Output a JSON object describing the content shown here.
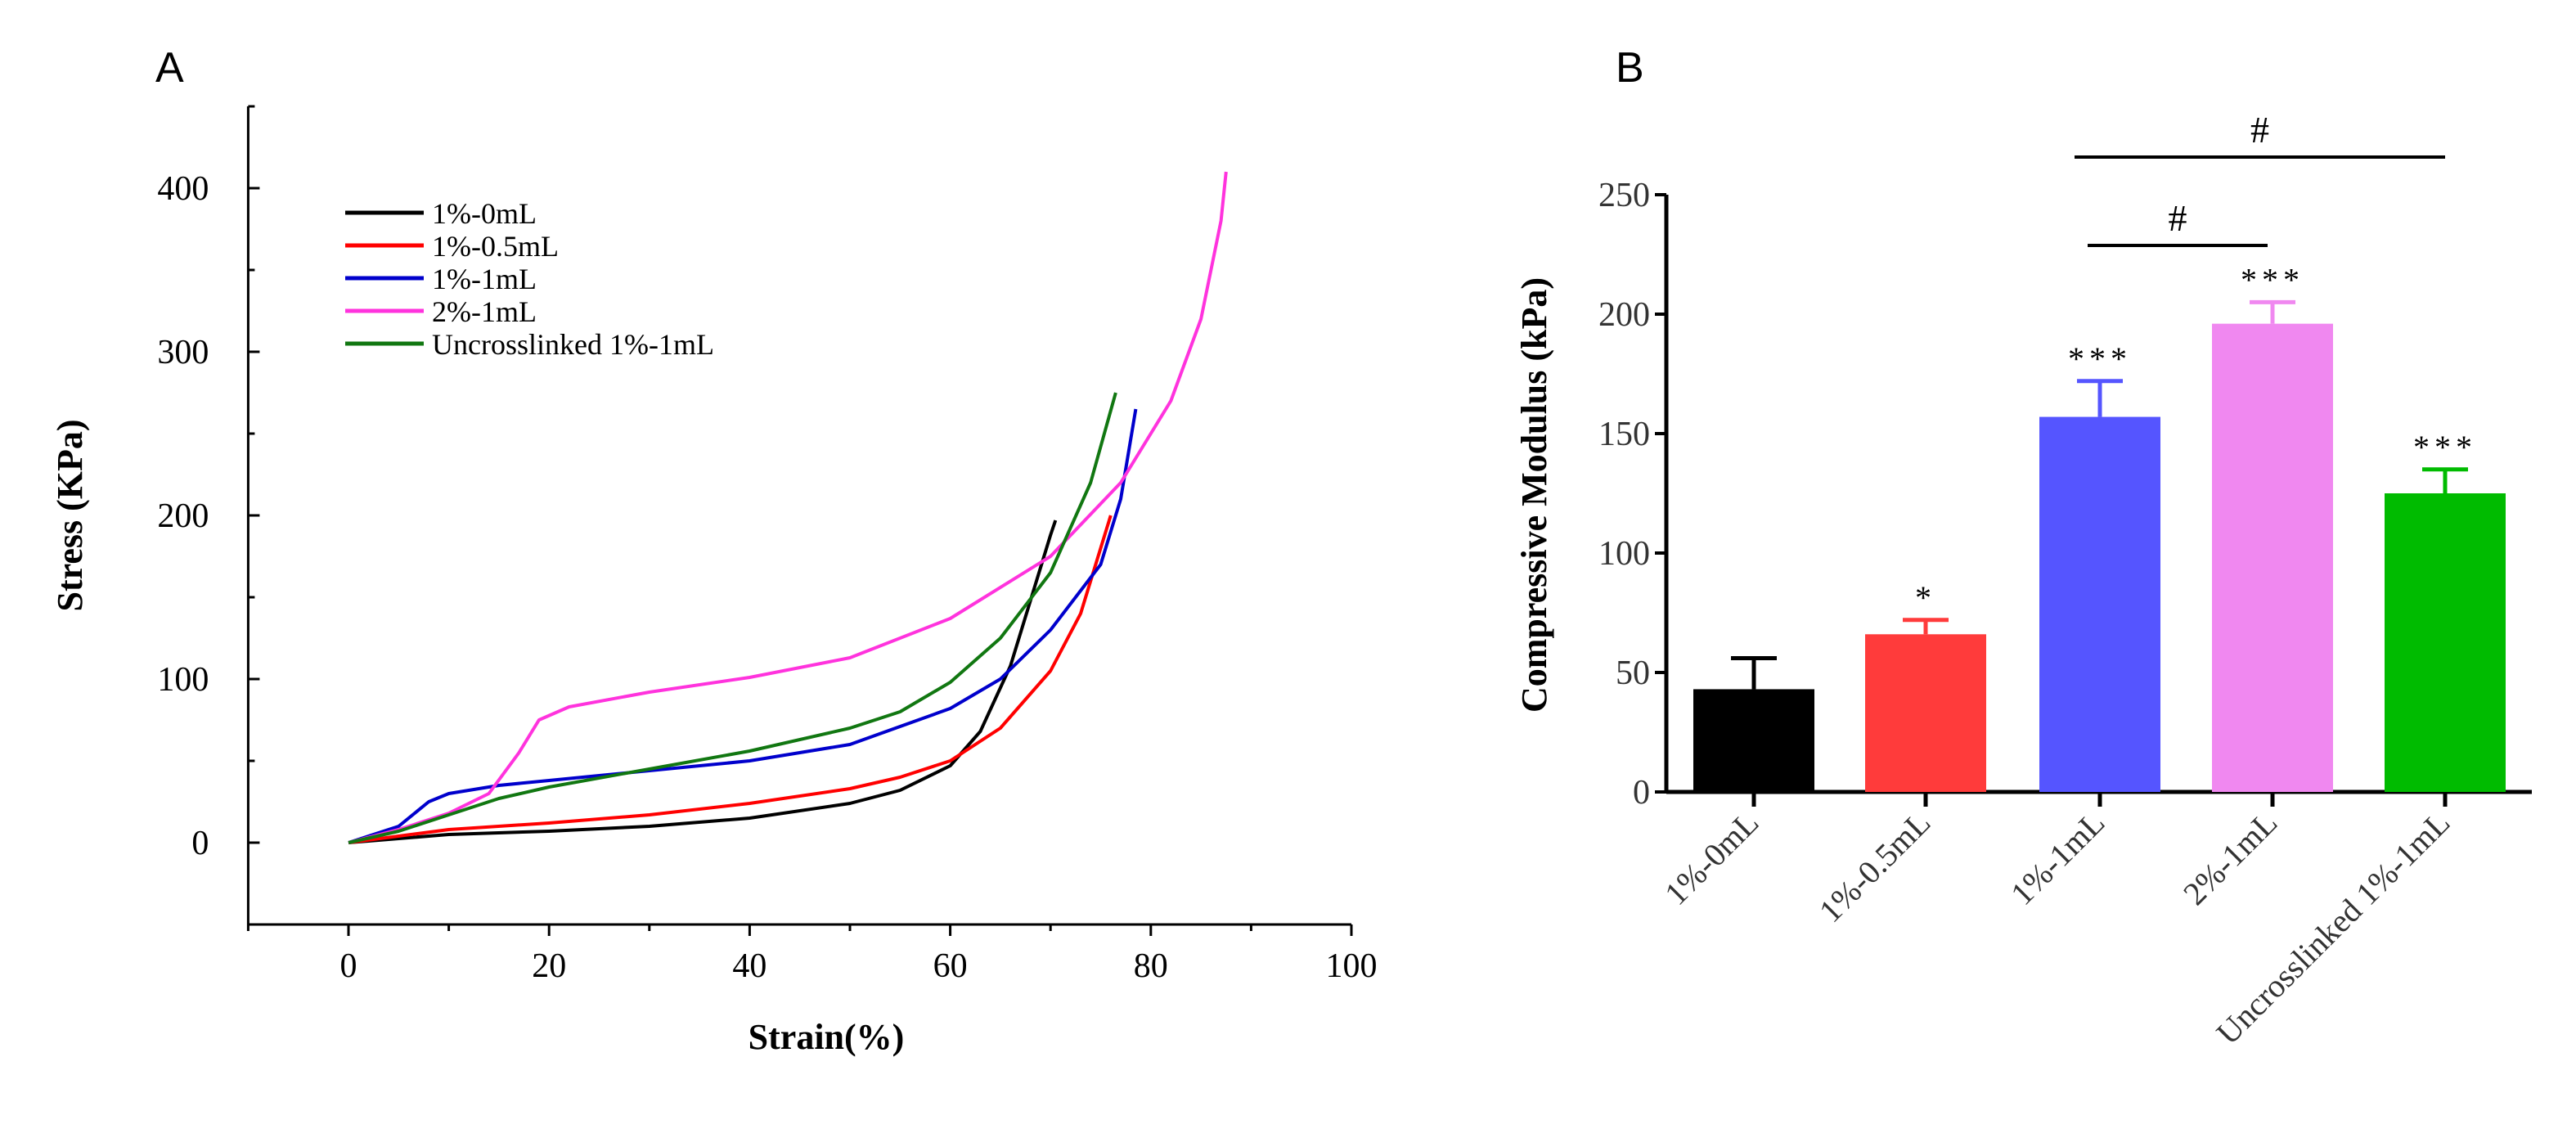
{
  "chart_data": [
    {
      "panel": "A",
      "type": "line",
      "xlabel": "Strain(%)",
      "ylabel": "Stress (KPa)",
      "xlim": [
        -10,
        100
      ],
      "ylim": [
        -50,
        450
      ],
      "xticks": [
        0,
        20,
        40,
        60,
        80,
        100
      ],
      "yticks": [
        0,
        100,
        200,
        300,
        400
      ],
      "legend_position": "top-left",
      "series": [
        {
          "name": "1%-0mL",
          "color": "#000000",
          "points": [
            [
              0,
              0
            ],
            [
              10,
              5
            ],
            [
              20,
              7
            ],
            [
              30,
              10
            ],
            [
              40,
              15
            ],
            [
              50,
              24
            ],
            [
              55,
              32
            ],
            [
              60,
              47
            ],
            [
              63,
              68
            ],
            [
              66,
              108
            ],
            [
              68,
              148
            ],
            [
              70,
              188
            ],
            [
              70.5,
              197
            ]
          ]
        },
        {
          "name": "1%-0.5mL",
          "color": "#ff0000",
          "points": [
            [
              0,
              0
            ],
            [
              10,
              8
            ],
            [
              20,
              12
            ],
            [
              30,
              17
            ],
            [
              40,
              24
            ],
            [
              50,
              33
            ],
            [
              55,
              40
            ],
            [
              60,
              50
            ],
            [
              65,
              70
            ],
            [
              70,
              105
            ],
            [
              73,
              140
            ],
            [
              75,
              180
            ],
            [
              76,
              200
            ]
          ]
        },
        {
          "name": "1%-1mL",
          "color": "#0000cc",
          "points": [
            [
              0,
              0
            ],
            [
              5,
              10
            ],
            [
              8,
              25
            ],
            [
              10,
              30
            ],
            [
              15,
              35
            ],
            [
              20,
              38
            ],
            [
              30,
              44
            ],
            [
              40,
              50
            ],
            [
              50,
              60
            ],
            [
              60,
              82
            ],
            [
              65,
              100
            ],
            [
              70,
              130
            ],
            [
              75,
              170
            ],
            [
              77,
              210
            ],
            [
              78.5,
              265
            ]
          ]
        },
        {
          "name": "2%-1mL",
          "color": "#ff33dd",
          "points": [
            [
              0,
              0
            ],
            [
              5,
              8
            ],
            [
              10,
              18
            ],
            [
              14,
              30
            ],
            [
              17,
              55
            ],
            [
              19,
              75
            ],
            [
              22,
              83
            ],
            [
              30,
              92
            ],
            [
              40,
              101
            ],
            [
              50,
              113
            ],
            [
              60,
              137
            ],
            [
              70,
              175
            ],
            [
              77,
              220
            ],
            [
              82,
              270
            ],
            [
              85,
              320
            ],
            [
              87,
              380
            ],
            [
              87.5,
              410
            ]
          ]
        },
        {
          "name": "Uncrosslinked 1%-1mL",
          "color": "#117711",
          "points": [
            [
              0,
              0
            ],
            [
              5,
              7
            ],
            [
              10,
              17
            ],
            [
              15,
              27
            ],
            [
              20,
              34
            ],
            [
              30,
              45
            ],
            [
              40,
              56
            ],
            [
              50,
              70
            ],
            [
              55,
              80
            ],
            [
              60,
              98
            ],
            [
              65,
              125
            ],
            [
              70,
              165
            ],
            [
              74,
              220
            ],
            [
              76.5,
              275
            ]
          ]
        }
      ]
    },
    {
      "panel": "B",
      "type": "bar",
      "ylabel": "Compressive Modulus (kPa)",
      "ylim": [
        0,
        250
      ],
      "yticks": [
        0,
        50,
        100,
        150,
        200,
        250
      ],
      "categories": [
        "1%-0mL",
        "1%-0.5mL",
        "1%-1mL",
        "2%-1mL",
        "Uncrosslinked 1%-1mL"
      ],
      "values": [
        43,
        66,
        157,
        196,
        125
      ],
      "errors": [
        13,
        6,
        15,
        9,
        10
      ],
      "colors": [
        "#000000",
        "#ff3b3b",
        "#5555ff",
        "#f088f0",
        "#00bb00"
      ],
      "significance": [
        "",
        "*",
        "***",
        "***",
        "***"
      ],
      "brackets": [
        {
          "from": 2,
          "to": 4,
          "label": "#"
        },
        {
          "from": 2,
          "to": 3,
          "label": "#"
        }
      ]
    }
  ]
}
